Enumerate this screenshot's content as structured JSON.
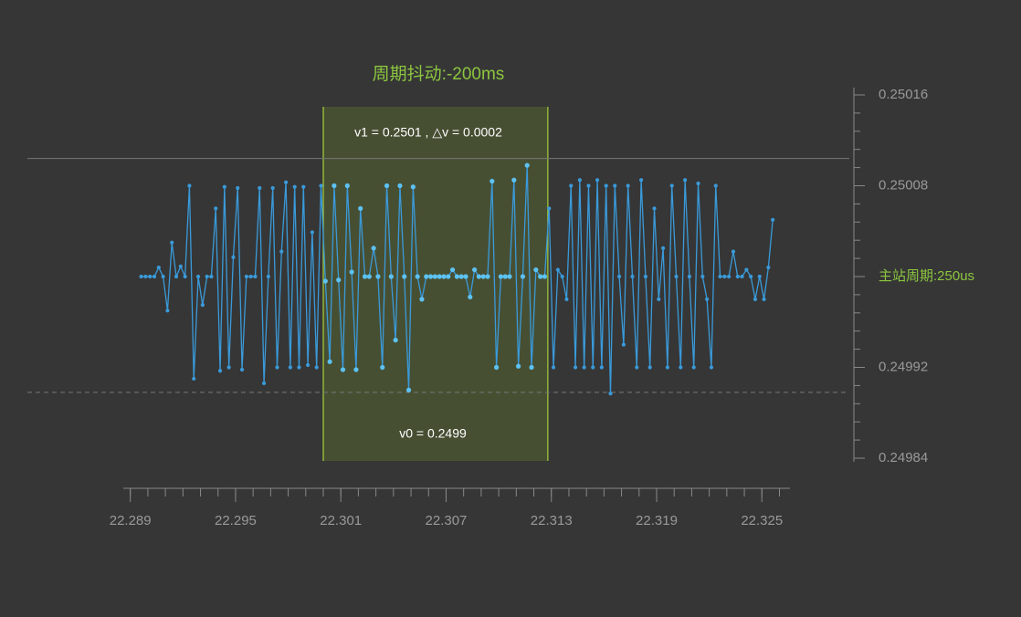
{
  "chart_data": {
    "type": "line",
    "title": "周期抖动:-200ms",
    "annotations": [
      "v1 = 0.2501 ,  △v = 0.0002",
      "v0 = 0.2499"
    ],
    "reference_lines": [
      0.250104,
      0.249898
    ],
    "highlight_xlim": [
      22.3,
      22.3128
    ],
    "xlim": [
      22.2886,
      22.3266
    ],
    "xticks": [
      22.289,
      22.295,
      22.301,
      22.307,
      22.313,
      22.319,
      22.325
    ],
    "xminorticks": [
      22.289,
      22.29,
      22.291,
      22.292,
      22.293,
      22.294,
      22.295,
      22.296,
      22.297,
      22.298,
      22.299,
      22.3,
      22.301,
      22.302,
      22.303,
      22.304,
      22.305,
      22.306,
      22.307,
      22.308,
      22.309,
      22.31,
      22.311,
      22.312,
      22.313,
      22.314,
      22.315,
      22.316,
      22.317,
      22.318,
      22.319,
      22.32,
      22.321,
      22.322,
      22.323,
      22.324,
      22.325,
      22.326
    ],
    "ylim": [
      0.24984,
      0.25016
    ],
    "yticks": [
      0.25016,
      0.25008,
      {
        "value": 0.25,
        "label": "主站周期:250us"
      },
      0.24992,
      0.24984
    ],
    "yminorticks": [
      0.24984,
      0.249856,
      0.249872,
      0.249888,
      0.249904,
      0.24992,
      0.249936,
      0.249952,
      0.249968,
      0.249984,
      0.25,
      0.250016,
      0.250032,
      0.250048,
      0.250064,
      0.25008,
      0.250096,
      0.250112,
      0.250128,
      0.250144,
      0.25016
    ],
    "series": [
      {
        "color": "#3a9ad9",
        "x": [
          22.28962,
          22.28987,
          22.29012,
          22.29037,
          22.29062,
          22.29087,
          22.29112,
          22.29137,
          22.29162,
          22.29187,
          22.29212,
          22.29237,
          22.29262,
          22.29287,
          22.29312,
          22.29337,
          22.29362,
          22.29387,
          22.29412,
          22.29437,
          22.29462,
          22.29487,
          22.29512,
          22.29537,
          22.29562,
          22.29587,
          22.29612,
          22.29637,
          22.29662,
          22.29687,
          22.29712,
          22.29737,
          22.29762,
          22.29787,
          22.29812,
          22.29837,
          22.29862,
          22.29887,
          22.29912,
          22.29937,
          22.29962,
          22.29987,
          22.30012,
          22.30037,
          22.30062,
          22.30087,
          22.30112,
          22.30137,
          22.30162,
          22.30187,
          22.30212,
          22.30237,
          22.30262,
          22.30287,
          22.30312,
          22.30337,
          22.30362,
          22.30387,
          22.30412,
          22.30437,
          22.30462,
          22.30487,
          22.30512,
          22.30537,
          22.30562,
          22.30587,
          22.30612,
          22.30637,
          22.30662,
          22.30687,
          22.30712,
          22.30737,
          22.30762,
          22.30787,
          22.30812,
          22.30837,
          22.30862,
          22.30887,
          22.30912,
          22.30937,
          22.30962,
          22.30987,
          22.31012,
          22.31037,
          22.31062,
          22.31087,
          22.31112,
          22.31137,
          22.31162,
          22.31187,
          22.31212,
          22.31237,
          22.31262,
          22.31287,
          22.31312,
          22.31337,
          22.31362,
          22.31387,
          22.31412,
          22.31437,
          22.31462,
          22.31487,
          22.31512,
          22.31537,
          22.31562,
          22.31587,
          22.31612,
          22.31637,
          22.31662,
          22.31687,
          22.31712,
          22.31737,
          22.31762,
          22.31787,
          22.31812,
          22.31837,
          22.31862,
          22.31887,
          22.31912,
          22.31937,
          22.31962,
          22.31987,
          22.32012,
          22.32037,
          22.32062,
          22.32087,
          22.32112,
          22.32137,
          22.32162,
          22.32187,
          22.32212,
          22.32237,
          22.32262,
          22.32287,
          22.32312,
          22.32337,
          22.32362,
          22.32387,
          22.32412,
          22.32437,
          22.32462,
          22.32487,
          22.32512,
          22.32537,
          22.32562
        ],
        "values": [
          0.25,
          0.25,
          0.25,
          0.25,
          0.250008,
          0.25,
          0.24997,
          0.25003,
          0.25,
          0.250009,
          0.25,
          0.25008,
          0.24991,
          0.25,
          0.249975,
          0.25,
          0.25,
          0.25006,
          0.249917,
          0.250079,
          0.24992,
          0.250017,
          0.250078,
          0.249918,
          0.25,
          0.25,
          0.25,
          0.250078,
          0.249906,
          0.25,
          0.250078,
          0.24992,
          0.250022,
          0.250083,
          0.24992,
          0.250079,
          0.24992,
          0.250079,
          0.249922,
          0.250039,
          0.24992,
          0.25008,
          0.249996,
          0.249925,
          0.25008,
          0.249997,
          0.249918,
          0.25008,
          0.250004,
          0.249918,
          0.25006,
          0.25,
          0.25,
          0.250025,
          0.25,
          0.24992,
          0.25008,
          0.25,
          0.249944,
          0.25008,
          0.25,
          0.2499,
          0.250079,
          0.25,
          0.24998,
          0.25,
          0.25,
          0.25,
          0.25,
          0.25,
          0.25,
          0.250006,
          0.25,
          0.25,
          0.25,
          0.249982,
          0.250006,
          0.25,
          0.25,
          0.25,
          0.250084,
          0.24992,
          0.25,
          0.25,
          0.25,
          0.250085,
          0.249921,
          0.25,
          0.250098,
          0.24992,
          0.250006,
          0.25,
          0.25,
          0.25006,
          0.24992,
          0.250006,
          0.25,
          0.24998,
          0.25008,
          0.24992,
          0.250085,
          0.24992,
          0.25008,
          0.24992,
          0.250085,
          0.24992,
          0.25008,
          0.249897,
          0.25008,
          0.25,
          0.24994,
          0.25008,
          0.25,
          0.24992,
          0.250085,
          0.25,
          0.24992,
          0.25006,
          0.24998,
          0.250025,
          0.24992,
          0.25008,
          0.25,
          0.24992,
          0.250085,
          0.25,
          0.24992,
          0.250082,
          0.25,
          0.24998,
          0.24992,
          0.25008,
          0.25,
          0.25,
          0.25,
          0.250022,
          0.25,
          0.25,
          0.250006,
          0.25,
          0.24998,
          0.25,
          0.24998,
          0.250008,
          0.25005
        ]
      }
    ]
  }
}
